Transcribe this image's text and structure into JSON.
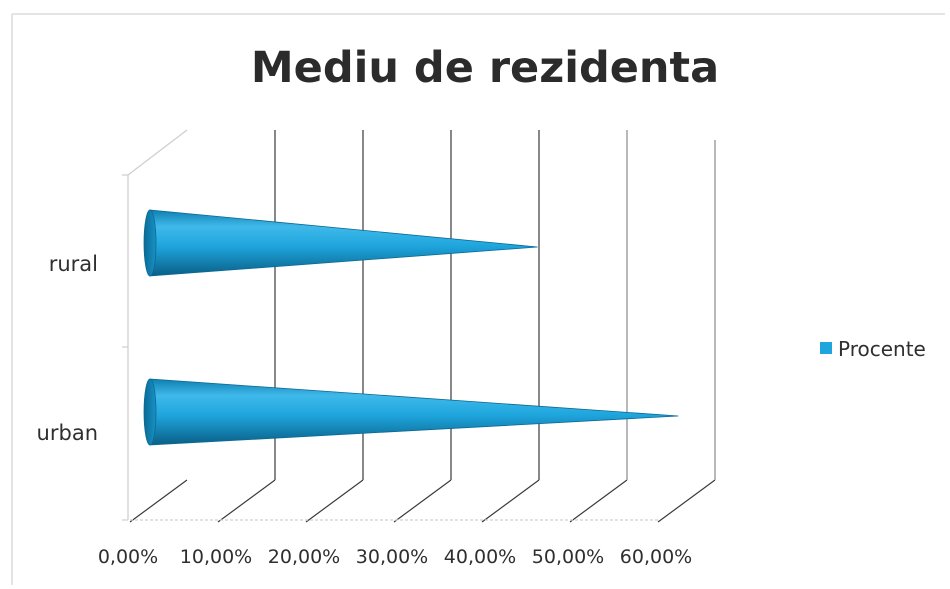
{
  "chart_data": {
    "type": "bar",
    "orientation": "horizontal",
    "style": "3d-cone",
    "title": "Mediu de rezidenta",
    "xlabel": "",
    "ylabel": "",
    "categories": [
      "rural",
      "urban"
    ],
    "series": [
      {
        "name": "Procente",
        "values": [
          0.42,
          0.58
        ]
      }
    ],
    "xlim": [
      0,
      0.6
    ],
    "x_ticks": [
      0,
      0.1,
      0.2,
      0.3,
      0.4,
      0.5,
      0.6
    ],
    "x_tick_labels": [
      "0,00%",
      "10,00%",
      "20,00%",
      "30,00%",
      "40,00%",
      "50,00%",
      "60,00%"
    ],
    "grid": true,
    "legend_position": "right",
    "colors": {
      "series": "#1ea5dd",
      "series_dark": "#0c6f9a",
      "series_light": "#6fd0f3",
      "grid": "#3a3a3a",
      "text": "#2f2f2f",
      "frame": "#dcdcdc"
    }
  }
}
